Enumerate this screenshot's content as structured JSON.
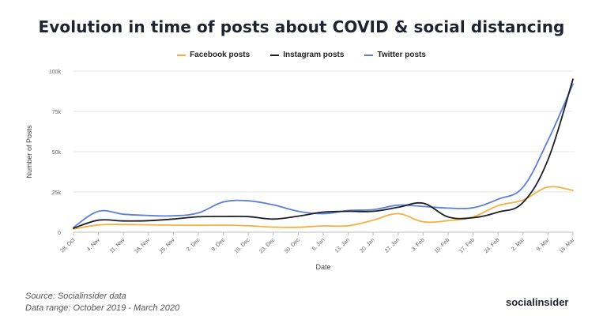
{
  "chart_data": {
    "type": "line",
    "title": "Evolution in time of posts about COVID & social distancing",
    "xlabel": "Date",
    "ylabel": "Number of Posts",
    "ylim": [
      0,
      100000
    ],
    "y_ticks": [
      0,
      25000,
      50000,
      75000,
      100000
    ],
    "y_tick_labels": [
      "0",
      "25k",
      "50k",
      "75k",
      "100k"
    ],
    "categories": [
      "28. Oct",
      "4. Nov",
      "11. Nov",
      "18. Nov",
      "25. Nov",
      "2. Dec",
      "9. Dec",
      "16. Dec",
      "23. Dec",
      "30. Dec",
      "6. Jan",
      "13. Jan",
      "20. Jan",
      "27. Jan",
      "3. Feb",
      "10. Feb",
      "17. Feb",
      "24. Feb",
      "2. Mar",
      "9. Mar",
      "16. Mar"
    ],
    "legend_position": "top-center",
    "grid": "horizontal",
    "series": [
      {
        "name": "Facebook posts",
        "color": "#f5b041",
        "values": [
          2000,
          4500,
          4800,
          4600,
          4400,
          4300,
          4400,
          4000,
          3200,
          3100,
          3900,
          4000,
          7500,
          11500,
          6500,
          7200,
          9500,
          16500,
          20000,
          28000,
          26000
        ]
      },
      {
        "name": "Instagram posts",
        "color": "#1c1f2a",
        "values": [
          2500,
          7500,
          7000,
          7200,
          8200,
          9600,
          9800,
          9700,
          8200,
          10000,
          12500,
          13000,
          13000,
          15500,
          18000,
          9500,
          9000,
          12500,
          18500,
          45000,
          95000
        ]
      },
      {
        "name": "Twitter posts",
        "color": "#5b7fd9",
        "values": [
          3000,
          13000,
          11200,
          10400,
          10200,
          12000,
          18800,
          19500,
          17000,
          13000,
          11500,
          13500,
          14000,
          16800,
          16000,
          15000,
          15200,
          20500,
          28000,
          57000,
          92000
        ]
      }
    ]
  },
  "footer": {
    "source": "Source: Socialinsider data",
    "range": "Data range: October 2019 - March 2020"
  },
  "brand": "socialinsider"
}
